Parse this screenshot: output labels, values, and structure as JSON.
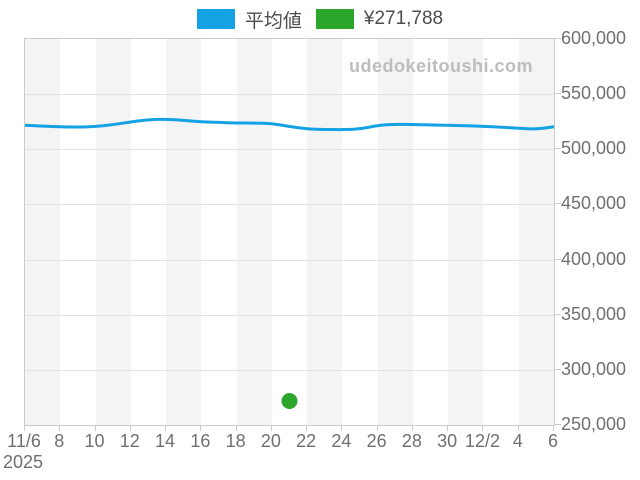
{
  "site_watermark": "udedokeitoushi.com",
  "legend": {
    "items": [
      {
        "name": "average",
        "label": "平均値",
        "color": "#15a2e5"
      },
      {
        "name": "price",
        "label": "¥271,788",
        "color": "#2ba62b"
      }
    ]
  },
  "colors": {
    "line_blue": "#15a2e5",
    "point_green": "#2ba62b",
    "axis_text": "#707070",
    "legend_text": "#4d4d4d",
    "watermark_text": "#bdbdbd",
    "gridline": "#e2e2e2",
    "border": "#cccccc",
    "stripe": "#f4f4f4"
  },
  "chart_data": {
    "type": "line",
    "title": "",
    "xlabel": "",
    "ylabel": "",
    "x_axis": {
      "year_label": "2025",
      "tick_labels": [
        "11/6",
        "8",
        "10",
        "12",
        "14",
        "16",
        "18",
        "20",
        "22",
        "24",
        "26",
        "28",
        "30",
        "12/2",
        "4",
        "6"
      ],
      "tick_interval_days": 2,
      "total_days": 30
    },
    "y_axis": {
      "min": 250000,
      "max": 600000,
      "tick_step": 50000,
      "tick_labels": [
        "600,000",
        "550,000",
        "500,000",
        "450,000",
        "400,000",
        "350,000",
        "300,000",
        "250,000"
      ]
    },
    "grid": true,
    "banding": "alternating-2day-vertical-stripes",
    "legend_position": "top-center",
    "series": [
      {
        "name": "平均値",
        "type": "line",
        "color": "#15a2e5",
        "x_start_day": 0,
        "x_step_days": 1,
        "values": [
          521800,
          521000,
          520400,
          520100,
          520600,
          522300,
          524800,
          526900,
          527300,
          526200,
          524900,
          524300,
          523900,
          523700,
          523500,
          520600,
          518400,
          518000,
          517800,
          518300,
          521700,
          522700,
          522400,
          522100,
          521800,
          521400,
          520900,
          520000,
          519100,
          518200,
          520400
        ]
      },
      {
        "name": "¥271,788",
        "type": "point",
        "color": "#2ba62b",
        "x_day": 15,
        "x_date": "11/21",
        "value": 271788,
        "marker_radius": 8
      }
    ]
  }
}
